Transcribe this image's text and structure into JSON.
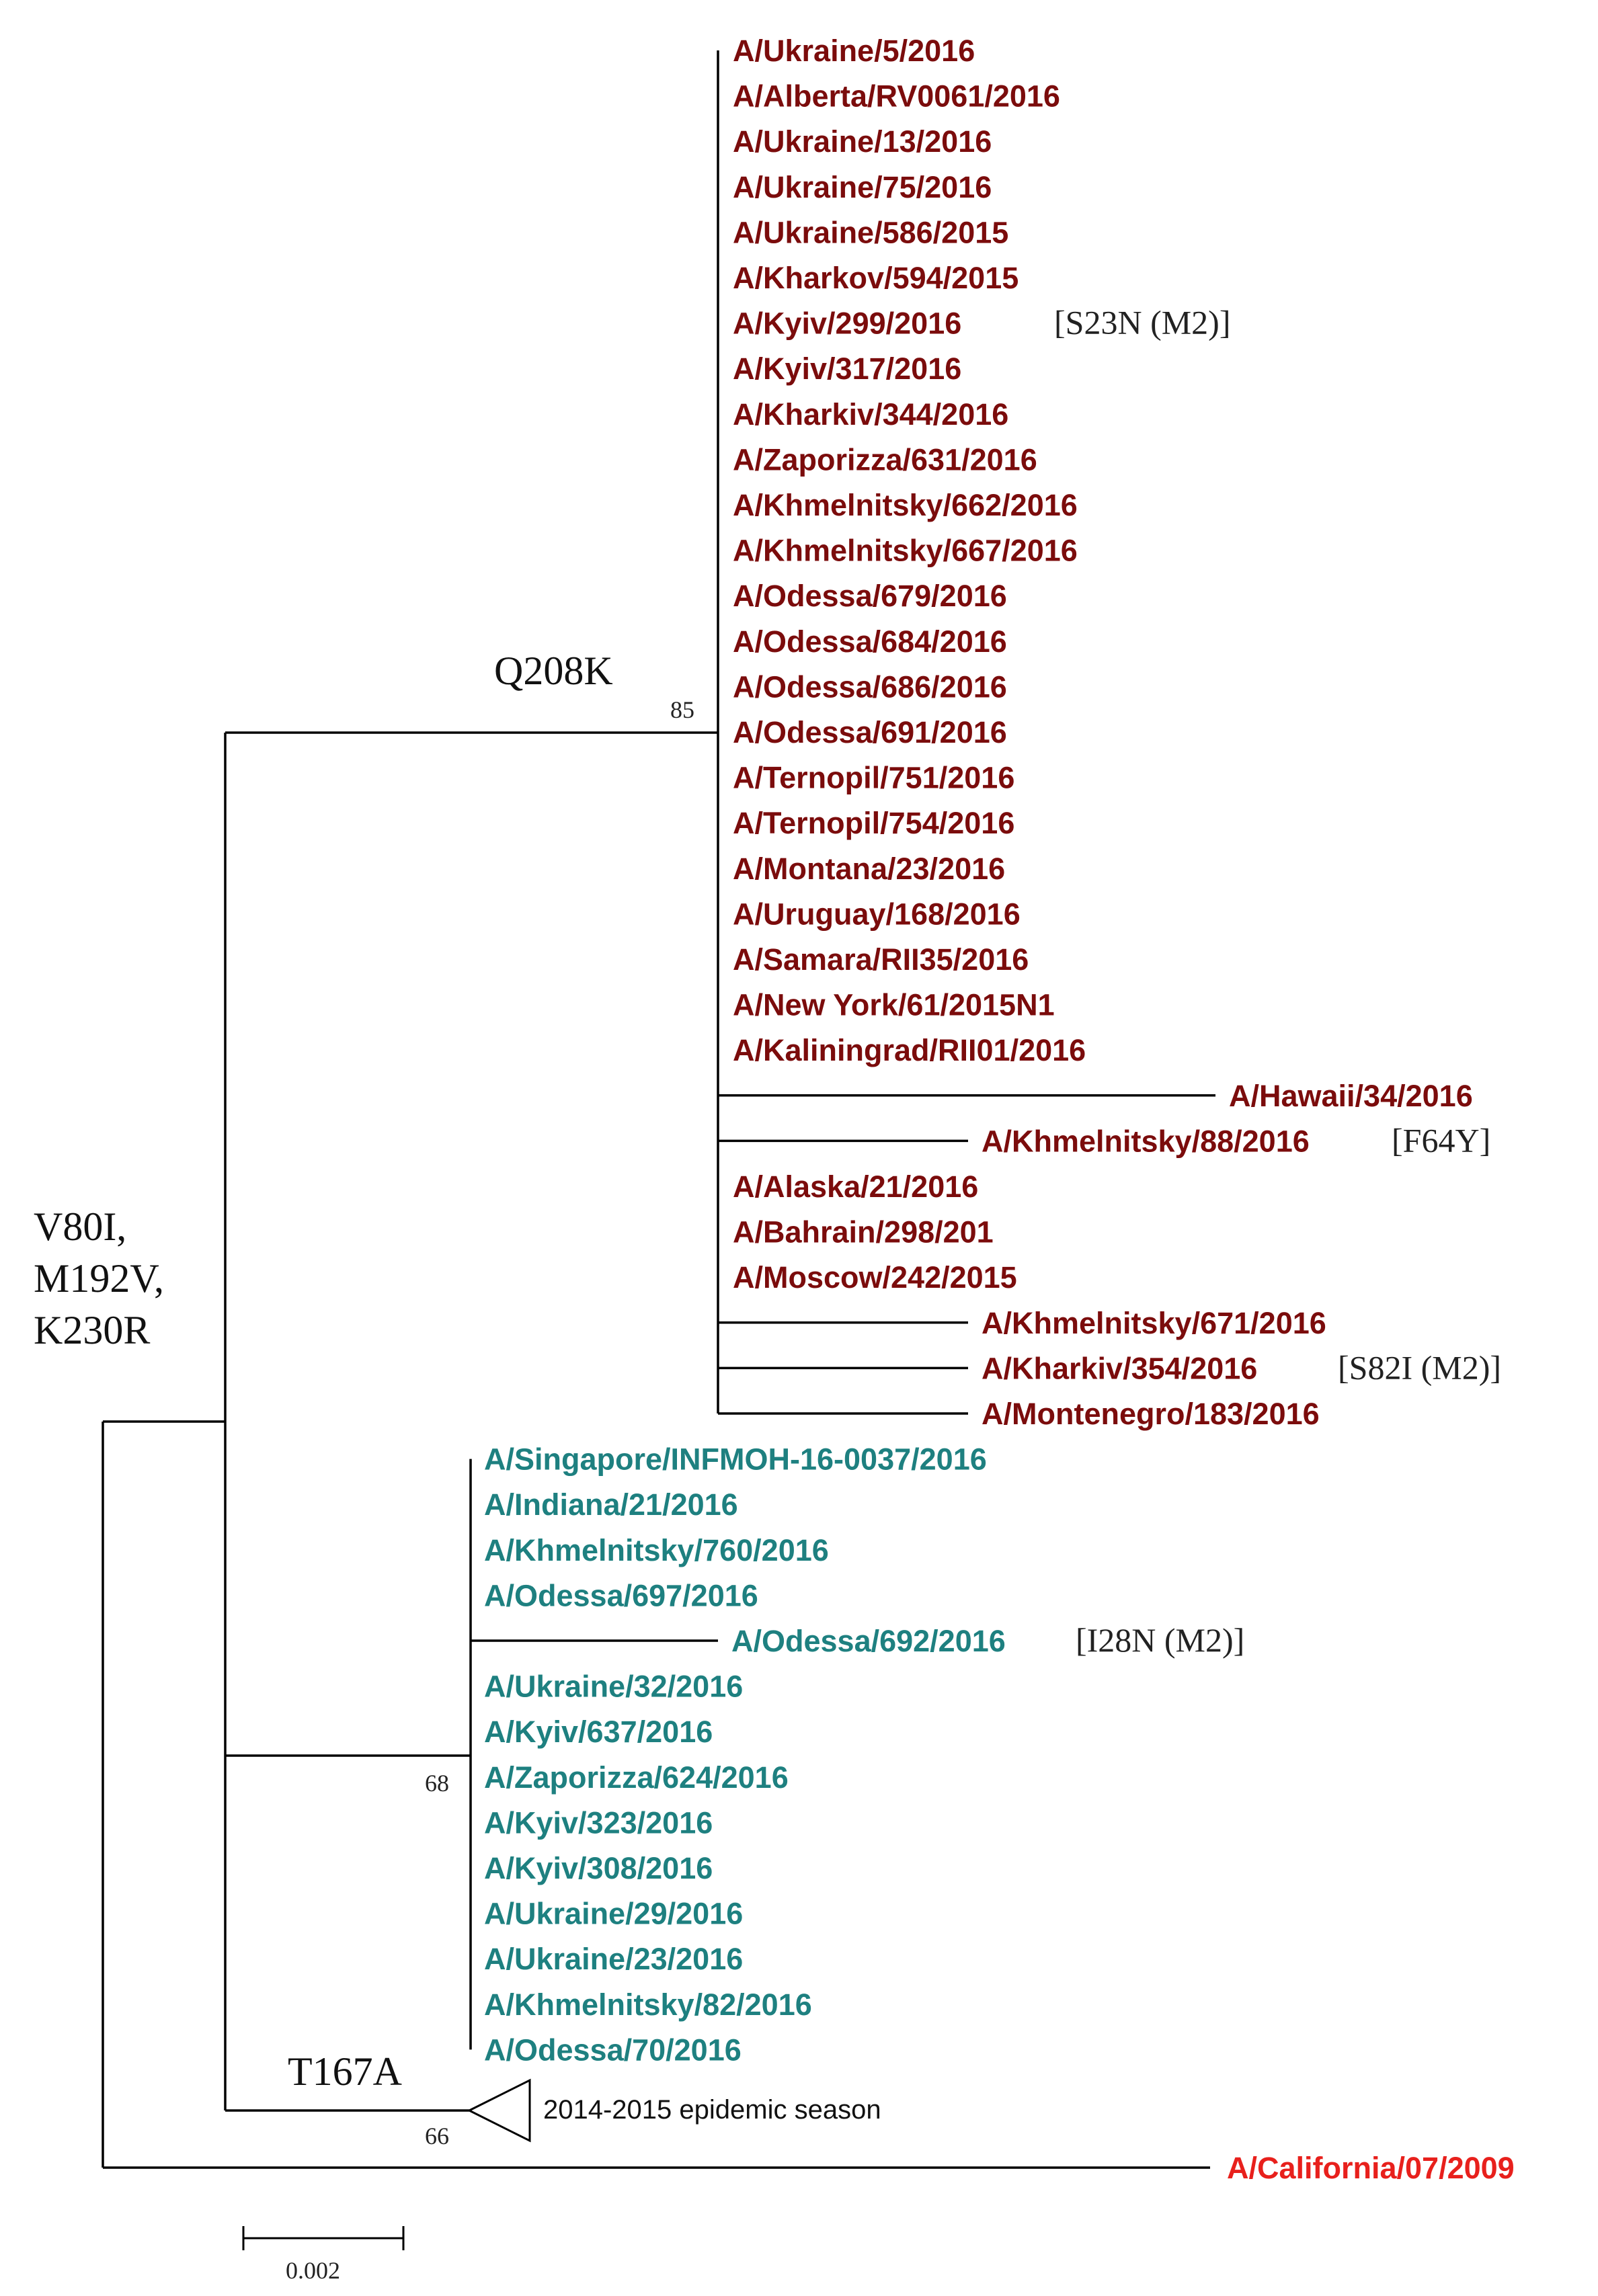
{
  "colors": {
    "clade_a": "#7b0c0c",
    "clade_b": "#1e8080",
    "outgroup": "#e8201c",
    "red_annotation": "#e8201c"
  },
  "clade_a": {
    "mutation": "Q208K",
    "bootstrap": "85",
    "taxa": [
      {
        "label": "A/Ukraine/5/2016"
      },
      {
        "label": "A/Alberta/RV0061/2016"
      },
      {
        "label": "A/Ukraine/13/2016"
      },
      {
        "label": "A/Ukraine/75/2016"
      },
      {
        "label": "A/Ukraine/586/2015"
      },
      {
        "label": "A/Kharkov/594/2015"
      },
      {
        "label": "A/Kyiv/299/2016",
        "note": "[S23N (M2)]"
      },
      {
        "label": "A/Kyiv/317/2016"
      },
      {
        "label": "A/Kharkiv/344/2016"
      },
      {
        "label": "A/Zaporizza/631/2016"
      },
      {
        "label": "A/Khmelnitsky/662/2016"
      },
      {
        "label": "A/Khmelnitsky/667/2016"
      },
      {
        "label": "A/Odessa/679/2016"
      },
      {
        "label": "A/Odessa/684/2016"
      },
      {
        "label": "A/Odessa/686/2016"
      },
      {
        "label": "A/Odessa/691/2016"
      },
      {
        "label": "A/Ternopil/751/2016"
      },
      {
        "label": "A/Ternopil/754/2016"
      },
      {
        "label": "A/Montana/23/2016"
      },
      {
        "label": "A/Uruguay/168/2016"
      },
      {
        "label": "A/Samara/RII35/2016"
      },
      {
        "label": "A/New York/61/2015N1"
      },
      {
        "label": "A/Kaliningrad/RII01/2016"
      },
      {
        "label": "A/Hawaii/34/2016"
      },
      {
        "label": "A/Khmelnitsky/88/2016",
        "note": "[F64Y]"
      },
      {
        "label": "A/Alaska/21/2016"
      },
      {
        "label": "A/Bahrain/298/201"
      },
      {
        "label": "A/Moscow/242/2015"
      },
      {
        "label": "A/Khmelnitsky/671/2016"
      },
      {
        "label": "A/Kharkiv/354/2016",
        "note": "[S82I (M2)]"
      },
      {
        "label": "A/Montenegro/183/2016"
      }
    ]
  },
  "clade_b": {
    "bootstrap": "68",
    "taxa": [
      {
        "label": "A/Singapore/INFMOH-16-0037/2016"
      },
      {
        "label": "A/Indiana/21/2016"
      },
      {
        "label": "A/Khmelnitsky/760/2016"
      },
      {
        "label": "A/Odessa/697/2016"
      },
      {
        "label": "A/Odessa/692/2016",
        "note": "[I28N (M2)]"
      },
      {
        "label": "A/Ukraine/32/2016"
      },
      {
        "label": "A/Kyiv/637/2016"
      },
      {
        "label": "A/Zaporizza/624/2016"
      },
      {
        "label": "A/Kyiv/323/2016"
      },
      {
        "label": "A/Kyiv/308/2016"
      },
      {
        "label": "A/Ukraine/29/2016"
      },
      {
        "label": "A/Ukraine/23/2016"
      },
      {
        "label": "A/Khmelnitsky/82/2016"
      },
      {
        "label": "A/Odessa/70/2016"
      }
    ]
  },
  "collapsed_clade": {
    "mutation": "T167A",
    "bootstrap": "66",
    "label": "2014-2015 epidemic season"
  },
  "outgroup": {
    "label": "A/California/07/2009"
  },
  "root_mutations": [
    "V80I,",
    "M192V,",
    "K230R"
  ],
  "scale_bar": {
    "label": "0.002"
  }
}
